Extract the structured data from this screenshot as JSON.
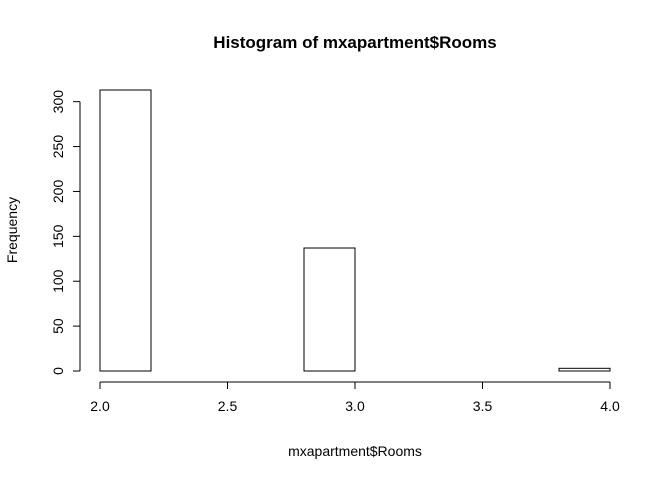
{
  "chart_data": {
    "type": "bar",
    "title": "Histogram of mxapartment$Rooms",
    "xlabel": "mxapartment$Rooms",
    "ylabel": "Frequency",
    "bins": [
      {
        "x0": 2.0,
        "x1": 2.2,
        "count": 313
      },
      {
        "x0": 2.2,
        "x1": 2.4,
        "count": 0
      },
      {
        "x0": 2.4,
        "x1": 2.6,
        "count": 0
      },
      {
        "x0": 2.6,
        "x1": 2.8,
        "count": 0
      },
      {
        "x0": 2.8,
        "x1": 3.0,
        "count": 137
      },
      {
        "x0": 3.0,
        "x1": 3.2,
        "count": 0
      },
      {
        "x0": 3.2,
        "x1": 3.4,
        "count": 0
      },
      {
        "x0": 3.4,
        "x1": 3.6,
        "count": 0
      },
      {
        "x0": 3.6,
        "x1": 3.8,
        "count": 0
      },
      {
        "x0": 3.8,
        "x1": 4.0,
        "count": 3
      }
    ],
    "xlim": [
      2.0,
      4.0
    ],
    "ylim": [
      0,
      313
    ],
    "xticks": [
      "2.0",
      "2.5",
      "3.0",
      "3.5",
      "4.0"
    ],
    "yticks": [
      "0",
      "50",
      "100",
      "150",
      "200",
      "250",
      "300"
    ],
    "grid": false,
    "legend": "none",
    "bar_fill": "#ffffff",
    "bar_stroke": "#000000"
  }
}
